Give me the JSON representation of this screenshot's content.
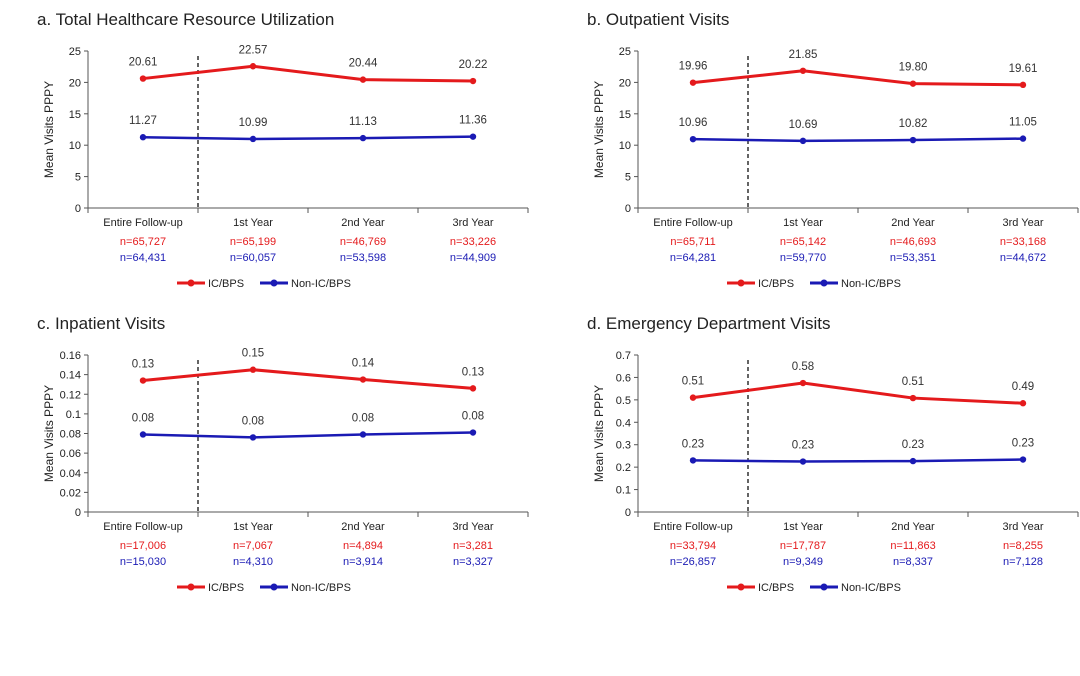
{
  "colors": {
    "series": [
      "#e41a1c",
      "#1a1ab4"
    ],
    "axis": "#555555",
    "text": "#333333"
  },
  "chart_data": [
    {
      "type": "line",
      "title": "a. Total Healthcare Resource Utilization",
      "ylabel": "Mean Visits PPPY",
      "categories": [
        "Entire Follow-up",
        "1st Year",
        "2nd Year",
        "3rd Year"
      ],
      "ylim": [
        0,
        25
      ],
      "yticks": [
        "0",
        "5",
        "10",
        "15",
        "20",
        "25"
      ],
      "series": [
        {
          "name": "IC/BPS",
          "values": [
            20.61,
            22.57,
            20.44,
            20.22
          ],
          "labels": [
            "20.61",
            "22.57",
            "20.44",
            "20.22"
          ],
          "n": [
            "n=65,727",
            "n=65,199",
            "n=46,769",
            "n=33,226"
          ]
        },
        {
          "name": "Non-IC/BPS",
          "values": [
            11.27,
            10.99,
            11.13,
            11.36
          ],
          "labels": [
            "11.27",
            "10.99",
            "11.13",
            "11.36"
          ],
          "n": [
            "n=64,431",
            "n=60,057",
            "n=53,598",
            "n=44,909"
          ]
        }
      ],
      "legend": "bottom"
    },
    {
      "type": "line",
      "title": "b. Outpatient Visits",
      "ylabel": "Mean Visits PPPY",
      "categories": [
        "Entire Follow-up",
        "1st Year",
        "2nd Year",
        "3rd Year"
      ],
      "ylim": [
        0,
        25
      ],
      "yticks": [
        "0",
        "5",
        "10",
        "15",
        "20",
        "25"
      ],
      "series": [
        {
          "name": "IC/BPS",
          "values": [
            19.96,
            21.85,
            19.8,
            19.61
          ],
          "labels": [
            "19.96",
            "21.85",
            "19.80",
            "19.61"
          ],
          "n": [
            "n=65,711",
            "n=65,142",
            "n=46,693",
            "n=33,168"
          ]
        },
        {
          "name": "Non-IC/BPS",
          "values": [
            10.96,
            10.69,
            10.82,
            11.05
          ],
          "labels": [
            "10.96",
            "10.69",
            "10.82",
            "11.05"
          ],
          "n": [
            "n=64,281",
            "n=59,770",
            "n=53,351",
            "n=44,672"
          ]
        }
      ],
      "legend": "bottom"
    },
    {
      "type": "line",
      "title": "c. Inpatient Visits",
      "ylabel": "Mean Visits PPPY",
      "categories": [
        "Entire Follow-up",
        "1st Year",
        "2nd Year",
        "3rd Year"
      ],
      "ylim": [
        0,
        0.16
      ],
      "yticks": [
        "0",
        "0.02",
        "0.04",
        "0.06",
        "0.08",
        "0.1",
        "0.12",
        "0.14",
        "0.16"
      ],
      "series": [
        {
          "name": "IC/BPS",
          "values": [
            0.134,
            0.145,
            0.135,
            0.126
          ],
          "labels": [
            "0.13",
            "0.15",
            "0.14",
            "0.13"
          ],
          "n": [
            "n=17,006",
            "n=7,067",
            "n=4,894",
            "n=3,281"
          ]
        },
        {
          "name": "Non-IC/BPS",
          "values": [
            0.079,
            0.076,
            0.079,
            0.081
          ],
          "labels": [
            "0.08",
            "0.08",
            "0.08",
            "0.08"
          ],
          "n": [
            "n=15,030",
            "n=4,310",
            "n=3,914",
            "n=3,327"
          ]
        }
      ],
      "legend": "bottom"
    },
    {
      "type": "line",
      "title": "d. Emergency Department Visits",
      "ylabel": "Mean Visits PPPY",
      "categories": [
        "Entire Follow-up",
        "1st Year",
        "2nd Year",
        "3rd Year"
      ],
      "ylim": [
        0,
        0.7
      ],
      "yticks": [
        "0",
        "0.1",
        "0.2",
        "0.3",
        "0.4",
        "0.5",
        "0.6",
        "0.7"
      ],
      "series": [
        {
          "name": "IC/BPS",
          "values": [
            0.51,
            0.575,
            0.508,
            0.485
          ],
          "labels": [
            "0.51",
            "0.58",
            "0.51",
            "0.49"
          ],
          "n": [
            "n=33,794",
            "n=17,787",
            "n=11,863",
            "n=8,255"
          ]
        },
        {
          "name": "Non-IC/BPS",
          "values": [
            0.23,
            0.225,
            0.227,
            0.234
          ],
          "labels": [
            "0.23",
            "0.23",
            "0.23",
            "0.23"
          ],
          "n": [
            "n=26,857",
            "n=9,349",
            "n=8,337",
            "n=7,128"
          ]
        }
      ],
      "legend": "bottom"
    }
  ]
}
